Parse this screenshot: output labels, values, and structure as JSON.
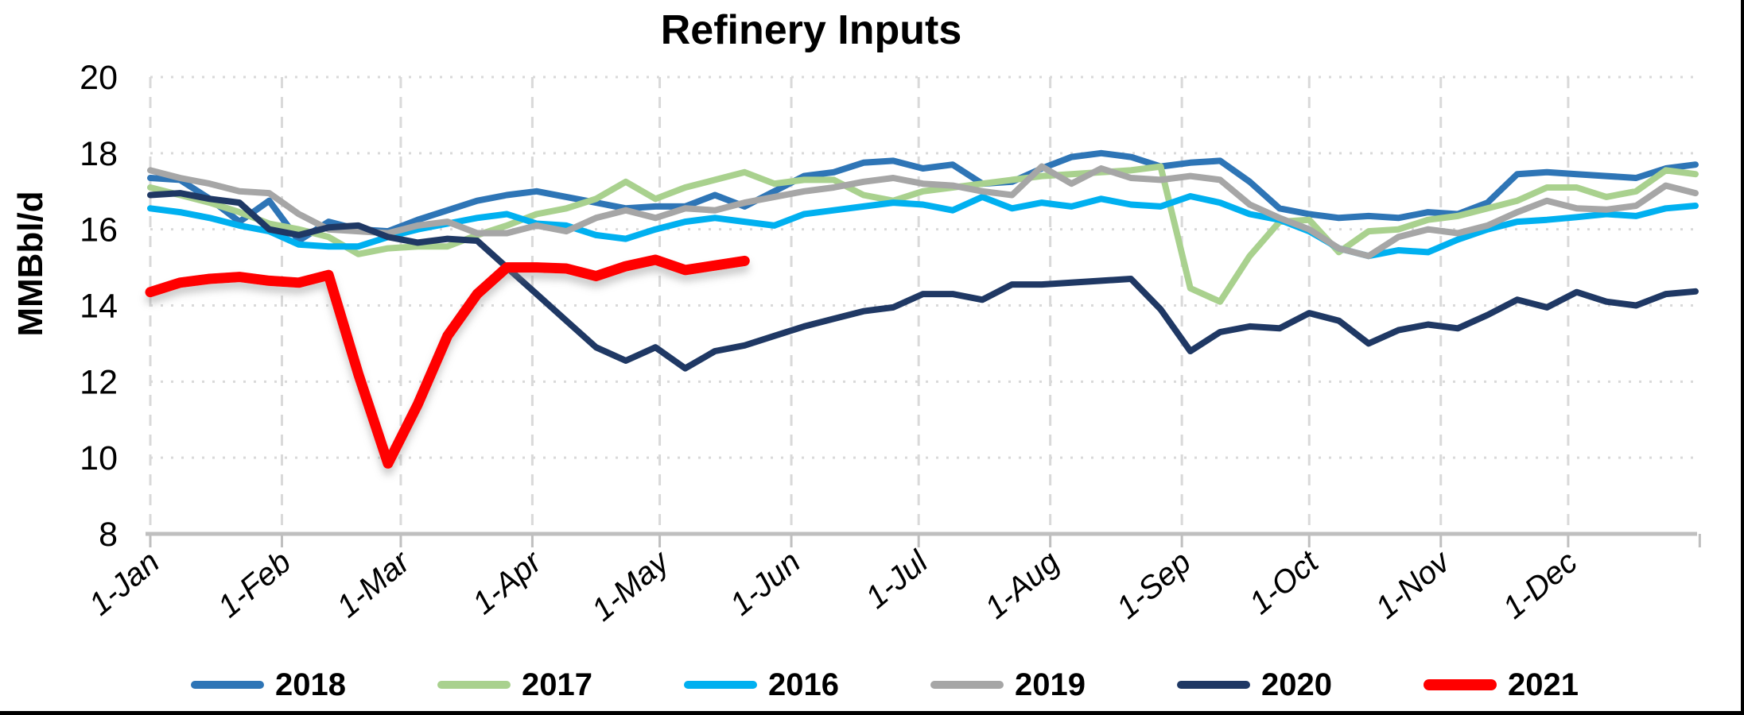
{
  "title": "Refinery Inputs",
  "chart_data": {
    "type": "line",
    "title": "Refinery Inputs",
    "xlabel": "",
    "ylabel": "MMBbl/d",
    "ylim": [
      8,
      20
    ],
    "yticks": [
      8,
      10,
      12,
      14,
      16,
      18,
      20
    ],
    "xtick_labels": [
      "1-Jan",
      "1-Feb",
      "1-Mar",
      "1-Apr",
      "1-May",
      "1-Jun",
      "1-Jul",
      "1-Aug",
      "1-Sep",
      "1-Oct",
      "1-Nov",
      "1-Dec"
    ],
    "x_month_start_days": [
      0,
      31,
      59,
      90,
      120,
      151,
      181,
      212,
      243,
      273,
      304,
      334
    ],
    "x_sampling": "weekly, day = 7 * index, Jan 1 through Dec 31",
    "grid": {
      "horizontal_style": "dotted",
      "vertical_style": "dashed",
      "color": "#D9D9D9"
    },
    "axis_color": "#BFBFBF",
    "legend_position": "bottom",
    "series": [
      {
        "name": "2018",
        "color": "#2E75B6",
        "thick": false,
        "values": [
          17.35,
          17.3,
          16.8,
          16.2,
          16.75,
          15.7,
          16.2,
          16.0,
          15.95,
          16.25,
          16.5,
          16.75,
          16.9,
          17.0,
          16.85,
          16.7,
          16.55,
          16.6,
          16.6,
          16.9,
          16.6,
          17.0,
          17.4,
          17.5,
          17.75,
          17.8,
          17.6,
          17.7,
          17.2,
          17.25,
          17.6,
          17.9,
          18.0,
          17.9,
          17.65,
          17.75,
          17.8,
          17.25,
          16.55,
          16.4,
          16.3,
          16.35,
          16.3,
          16.45,
          16.4,
          16.7,
          17.45,
          17.5,
          17.45,
          17.4,
          17.35,
          17.6,
          17.7
        ]
      },
      {
        "name": "2017",
        "color": "#A9D18E",
        "thick": false,
        "values": [
          17.1,
          16.9,
          16.7,
          16.45,
          16.15,
          16.0,
          15.8,
          15.35,
          15.5,
          15.55,
          15.55,
          15.85,
          16.1,
          16.4,
          16.55,
          16.8,
          17.25,
          16.8,
          17.1,
          17.3,
          17.5,
          17.2,
          17.3,
          17.3,
          16.9,
          16.75,
          17.0,
          17.1,
          17.2,
          17.3,
          17.4,
          17.45,
          17.5,
          17.55,
          17.65,
          14.45,
          14.1,
          15.3,
          16.2,
          16.25,
          15.4,
          15.95,
          16.0,
          16.25,
          16.35,
          16.55,
          16.75,
          17.1,
          17.1,
          16.85,
          17.0,
          17.55,
          17.45
        ]
      },
      {
        "name": "2016",
        "color": "#00B0F0",
        "thick": false,
        "values": [
          16.55,
          16.45,
          16.3,
          16.1,
          15.95,
          15.6,
          15.55,
          15.55,
          15.8,
          16.0,
          16.15,
          16.3,
          16.4,
          16.15,
          16.1,
          15.85,
          15.75,
          16.0,
          16.2,
          16.3,
          16.2,
          16.1,
          16.4,
          16.5,
          16.6,
          16.7,
          16.65,
          16.5,
          16.85,
          16.55,
          16.7,
          16.6,
          16.8,
          16.65,
          16.6,
          16.87,
          16.7,
          16.4,
          16.25,
          15.95,
          15.5,
          15.3,
          15.45,
          15.4,
          15.73,
          16.0,
          16.2,
          16.25,
          16.32,
          16.4,
          16.35,
          16.55,
          16.62
        ]
      },
      {
        "name": "2019",
        "color": "#A6A6A6",
        "thick": false,
        "values": [
          17.55,
          17.35,
          17.2,
          17.0,
          16.95,
          16.4,
          16.0,
          15.95,
          15.9,
          16.1,
          16.2,
          15.9,
          15.9,
          16.1,
          15.95,
          16.3,
          16.5,
          16.3,
          16.55,
          16.5,
          16.7,
          16.85,
          17.0,
          17.1,
          17.25,
          17.35,
          17.2,
          17.15,
          17.0,
          16.9,
          17.65,
          17.2,
          17.6,
          17.35,
          17.3,
          17.4,
          17.3,
          16.65,
          16.3,
          16.0,
          15.5,
          15.3,
          15.8,
          16.0,
          15.9,
          16.1,
          16.45,
          16.75,
          16.55,
          16.52,
          16.62,
          17.15,
          16.95
        ]
      },
      {
        "name": "2020",
        "color": "#1F3864",
        "thick": false,
        "values": [
          16.9,
          16.95,
          16.8,
          16.7,
          16.0,
          15.85,
          16.05,
          16.1,
          15.8,
          15.65,
          15.75,
          15.7,
          15.0,
          14.3,
          13.6,
          12.9,
          12.55,
          12.9,
          12.35,
          12.8,
          12.95,
          13.2,
          13.45,
          13.65,
          13.85,
          13.95,
          14.3,
          14.3,
          14.15,
          14.55,
          14.55,
          14.6,
          14.65,
          14.7,
          13.9,
          12.8,
          13.3,
          13.45,
          13.4,
          13.8,
          13.6,
          13.0,
          13.35,
          13.5,
          13.4,
          13.75,
          14.15,
          13.95,
          14.35,
          14.1,
          14.0,
          14.3,
          14.37
        ]
      },
      {
        "name": "2021",
        "color": "#FF0000",
        "thick": true,
        "values": [
          14.35,
          14.6,
          14.7,
          14.75,
          14.65,
          14.6,
          14.8,
          12.2,
          9.85,
          11.4,
          13.2,
          14.3,
          15.0,
          15.0,
          14.97,
          14.77,
          15.03,
          15.2,
          14.93,
          15.05,
          15.17
        ]
      }
    ],
    "legend_order": [
      "2018",
      "2017",
      "2016",
      "2019",
      "2020",
      "2021"
    ],
    "annotations": []
  }
}
